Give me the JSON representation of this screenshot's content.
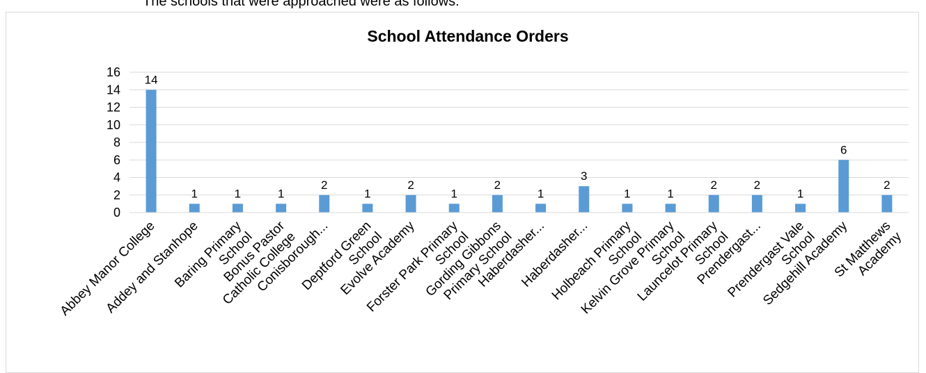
{
  "intro_text": "The schools that were approached were as follows:",
  "chart_data": {
    "type": "bar",
    "title": "School Attendance Orders",
    "xlabel": "",
    "ylabel": "",
    "ylim": [
      0,
      16
    ],
    "yticks": [
      0,
      2,
      4,
      6,
      8,
      10,
      12,
      14,
      16
    ],
    "grid": true,
    "legend": "none",
    "bar_color": "#5b9bd5",
    "categories": [
      [
        "Abbey Manor College"
      ],
      [
        "Addey and Stanhope"
      ],
      [
        "Baring Primary",
        "School"
      ],
      [
        "Bonus Pastor",
        "Catholic College"
      ],
      [
        "Conisborough..."
      ],
      [
        "Deptford Green",
        "School"
      ],
      [
        "Evolve Academy"
      ],
      [
        "Forster Park Primary",
        "School"
      ],
      [
        "Gording Gibbons",
        "Primary School"
      ],
      [
        "Haberdasher..."
      ],
      [
        "Haberdasher..."
      ],
      [
        "Holbeach Primary",
        "School"
      ],
      [
        "Kelvin Grove Primary",
        "School"
      ],
      [
        "Launcelot Primary",
        "School"
      ],
      [
        "Prendergast..."
      ],
      [
        "Prendergast Vale",
        "School"
      ],
      [
        "Sedgehill Academy"
      ],
      [
        "St Matthews",
        "Academy"
      ]
    ],
    "values": [
      14,
      1,
      1,
      1,
      2,
      1,
      2,
      1,
      2,
      1,
      3,
      1,
      1,
      2,
      2,
      1,
      6,
      2
    ]
  }
}
